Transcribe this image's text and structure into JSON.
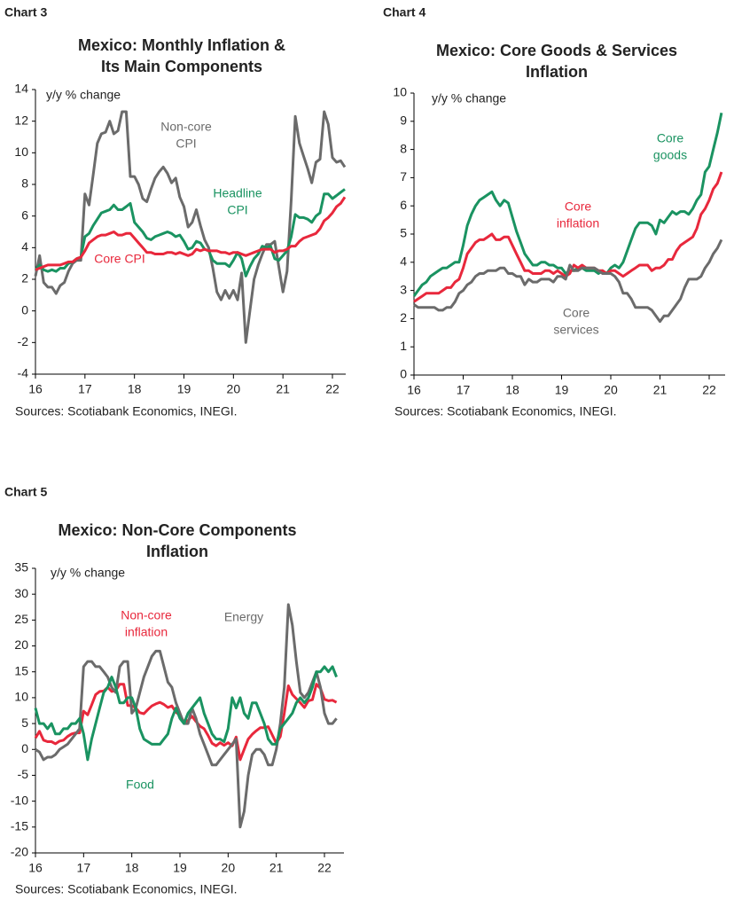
{
  "chart_data": [
    {
      "type": "line",
      "chart_label": "Chart 3",
      "title": "Mexico: Monthly Inflation &\nIts Main Components",
      "y_label": "y/y % change",
      "source": "Sources: Scotiabank Economics, INEGI.",
      "categories": [
        "16",
        null,
        null,
        null,
        null,
        null,
        null,
        null,
        null,
        null,
        null,
        null,
        "17",
        null,
        null,
        null,
        null,
        null,
        null,
        null,
        null,
        null,
        null,
        null,
        "18",
        null,
        null,
        null,
        null,
        null,
        null,
        null,
        null,
        null,
        null,
        null,
        "19",
        null,
        null,
        null,
        null,
        null,
        null,
        null,
        null,
        null,
        null,
        null,
        "20",
        null,
        null,
        null,
        null,
        null,
        null,
        null,
        null,
        null,
        null,
        null,
        "21",
        null,
        null,
        null,
        null,
        null,
        null,
        null,
        null,
        null,
        null,
        null,
        "22",
        null,
        null,
        null
      ],
      "ylim": [
        -4,
        14
      ],
      "yticks": [
        -4,
        -2,
        0,
        2,
        4,
        6,
        8,
        10,
        12,
        14
      ],
      "series": [
        {
          "name": "Non-core\nCPI",
          "color": "#6b6b6b",
          "values": [
            2.2,
            3.5,
            1.8,
            1.5,
            1.5,
            1.1,
            1.6,
            1.8,
            2.5,
            3.0,
            3.2,
            3.2,
            7.4,
            6.7,
            8.6,
            10.6,
            11.2,
            11.3,
            12.0,
            11.2,
            11.4,
            12.6,
            12.6,
            8.5,
            8.5,
            8.0,
            7.1,
            6.9,
            7.7,
            8.4,
            8.8,
            9.1,
            8.7,
            8.1,
            8.4,
            7.2,
            6.6,
            5.3,
            5.6,
            6.4,
            5.4,
            4.5,
            4.0,
            2.7,
            1.2,
            0.7,
            1.3,
            0.8,
            1.3,
            0.7,
            2.4,
            -2.0,
            0.0,
            2.0,
            2.9,
            3.6,
            4.2,
            4.2,
            4.4,
            2.8,
            1.2,
            2.5,
            7.0,
            12.3,
            10.6,
            9.8,
            9.0,
            8.1,
            9.4,
            9.6,
            12.6,
            11.8,
            9.7,
            9.4,
            9.5,
            9.1
          ]
        },
        {
          "name": "Headline\nCPI",
          "color": "#1a9361",
          "values": [
            2.6,
            2.9,
            2.6,
            2.5,
            2.6,
            2.5,
            2.7,
            2.7,
            3.0,
            3.1,
            3.3,
            3.4,
            4.7,
            4.9,
            5.4,
            5.8,
            6.2,
            6.3,
            6.4,
            6.7,
            6.4,
            6.4,
            6.6,
            6.8,
            5.6,
            5.3,
            5.0,
            4.6,
            4.5,
            4.7,
            4.8,
            4.9,
            5.0,
            4.9,
            4.7,
            4.8,
            4.4,
            3.9,
            4.0,
            4.4,
            4.3,
            3.9,
            3.8,
            3.2,
            3.0,
            3.0,
            3.0,
            2.8,
            3.2,
            3.7,
            3.3,
            2.2,
            2.8,
            3.3,
            3.6,
            4.1,
            4.0,
            4.1,
            3.3,
            3.2,
            3.5,
            3.8,
            4.7,
            6.1,
            5.9,
            5.9,
            5.8,
            5.6,
            6.0,
            6.2,
            7.4,
            7.4,
            7.1,
            7.3,
            7.5,
            7.7
          ]
        },
        {
          "name": "Core CPI",
          "color": "#e8283c",
          "values": [
            2.6,
            2.7,
            2.8,
            2.9,
            2.9,
            2.9,
            2.9,
            3.0,
            3.1,
            3.1,
            3.3,
            3.4,
            3.8,
            4.3,
            4.5,
            4.7,
            4.8,
            4.8,
            4.9,
            5.0,
            4.8,
            4.8,
            4.9,
            4.9,
            4.6,
            4.3,
            4.0,
            3.7,
            3.7,
            3.6,
            3.6,
            3.6,
            3.7,
            3.7,
            3.6,
            3.7,
            3.6,
            3.5,
            3.6,
            3.9,
            3.8,
            3.9,
            3.8,
            3.8,
            3.8,
            3.7,
            3.7,
            3.6,
            3.7,
            3.7,
            3.6,
            3.5,
            3.6,
            3.7,
            3.8,
            3.9,
            3.9,
            3.9,
            3.7,
            3.8,
            3.8,
            3.9,
            4.1,
            4.1,
            4.4,
            4.6,
            4.7,
            4.8,
            4.9,
            5.2,
            5.7,
            5.9,
            6.2,
            6.6,
            6.8,
            7.2
          ]
        }
      ]
    },
    {
      "type": "line",
      "chart_label": "Chart 4",
      "title": "Mexico: Core Goods & Services\nInflation",
      "y_label": "y/y % change",
      "source": "Sources: Scotiabank Economics, INEGI.",
      "categories": [
        "16",
        null,
        null,
        null,
        null,
        null,
        null,
        null,
        null,
        null,
        null,
        null,
        "17",
        null,
        null,
        null,
        null,
        null,
        null,
        null,
        null,
        null,
        null,
        null,
        "18",
        null,
        null,
        null,
        null,
        null,
        null,
        null,
        null,
        null,
        null,
        null,
        "19",
        null,
        null,
        null,
        null,
        null,
        null,
        null,
        null,
        null,
        null,
        null,
        "20",
        null,
        null,
        null,
        null,
        null,
        null,
        null,
        null,
        null,
        null,
        null,
        "21",
        null,
        null,
        null,
        null,
        null,
        null,
        null,
        null,
        null,
        null,
        null,
        "22",
        null,
        null,
        null
      ],
      "ylim": [
        0,
        10
      ],
      "yticks": [
        0,
        1,
        2,
        3,
        4,
        5,
        6,
        7,
        8,
        9,
        10
      ],
      "series": [
        {
          "name": "Core\ngoods",
          "color": "#1a9361",
          "values": [
            2.8,
            3.0,
            3.2,
            3.3,
            3.5,
            3.6,
            3.7,
            3.8,
            3.8,
            3.9,
            4.0,
            4.0,
            4.6,
            5.3,
            5.7,
            6.0,
            6.2,
            6.3,
            6.4,
            6.5,
            6.2,
            6.0,
            6.2,
            6.1,
            5.6,
            5.1,
            4.7,
            4.3,
            4.1,
            3.9,
            3.9,
            4.0,
            4.0,
            3.9,
            3.9,
            3.8,
            3.8,
            3.6,
            3.7,
            3.7,
            3.8,
            3.8,
            3.7,
            3.7,
            3.7,
            3.6,
            3.7,
            3.6,
            3.8,
            3.9,
            3.8,
            4.0,
            4.4,
            4.8,
            5.2,
            5.4,
            5.4,
            5.4,
            5.3,
            5.0,
            5.5,
            5.4,
            5.6,
            5.8,
            5.7,
            5.8,
            5.8,
            5.7,
            5.9,
            6.2,
            6.4,
            7.2,
            7.4,
            8.0,
            8.6,
            9.3
          ]
        },
        {
          "name": "Core\ninflation",
          "color": "#e8283c",
          "values": [
            2.6,
            2.7,
            2.8,
            2.9,
            2.9,
            2.9,
            2.9,
            3.0,
            3.1,
            3.1,
            3.3,
            3.4,
            3.8,
            4.3,
            4.5,
            4.7,
            4.8,
            4.8,
            4.9,
            5.0,
            4.8,
            4.8,
            4.9,
            4.9,
            4.6,
            4.3,
            4.0,
            3.7,
            3.7,
            3.6,
            3.6,
            3.6,
            3.7,
            3.7,
            3.6,
            3.7,
            3.6,
            3.5,
            3.6,
            3.9,
            3.8,
            3.9,
            3.8,
            3.8,
            3.8,
            3.7,
            3.7,
            3.6,
            3.7,
            3.7,
            3.6,
            3.5,
            3.6,
            3.7,
            3.8,
            3.9,
            3.9,
            3.9,
            3.7,
            3.8,
            3.8,
            3.9,
            4.1,
            4.1,
            4.4,
            4.6,
            4.7,
            4.8,
            4.9,
            5.2,
            5.7,
            5.9,
            6.2,
            6.6,
            6.8,
            7.2
          ]
        },
        {
          "name": "Core\nservices",
          "color": "#6b6b6b",
          "values": [
            2.5,
            2.4,
            2.4,
            2.4,
            2.4,
            2.4,
            2.3,
            2.3,
            2.4,
            2.4,
            2.6,
            2.9,
            3.0,
            3.2,
            3.3,
            3.5,
            3.6,
            3.6,
            3.7,
            3.7,
            3.7,
            3.8,
            3.8,
            3.6,
            3.6,
            3.5,
            3.5,
            3.2,
            3.4,
            3.3,
            3.3,
            3.4,
            3.4,
            3.4,
            3.3,
            3.5,
            3.5,
            3.4,
            3.9,
            3.7,
            3.7,
            3.8,
            3.8,
            3.8,
            3.8,
            3.7,
            3.6,
            3.6,
            3.6,
            3.5,
            3.3,
            2.9,
            2.9,
            2.7,
            2.4,
            2.4,
            2.4,
            2.4,
            2.3,
            2.1,
            1.9,
            2.1,
            2.1,
            2.3,
            2.5,
            2.7,
            3.1,
            3.4,
            3.4,
            3.4,
            3.5,
            3.8,
            4.0,
            4.3,
            4.5,
            4.8
          ]
        }
      ]
    },
    {
      "type": "line",
      "chart_label": "Chart 5",
      "title": "Mexico: Non-Core Components\nInflation",
      "y_label": "y/y % change",
      "source": "Sources: Scotiabank Economics, INEGI.",
      "categories": [
        "16",
        null,
        null,
        null,
        null,
        null,
        null,
        null,
        null,
        null,
        null,
        null,
        "17",
        null,
        null,
        null,
        null,
        null,
        null,
        null,
        null,
        null,
        null,
        null,
        "18",
        null,
        null,
        null,
        null,
        null,
        null,
        null,
        null,
        null,
        null,
        null,
        "19",
        null,
        null,
        null,
        null,
        null,
        null,
        null,
        null,
        null,
        null,
        null,
        "20",
        null,
        null,
        null,
        null,
        null,
        null,
        null,
        null,
        null,
        null,
        null,
        "21",
        null,
        null,
        null,
        null,
        null,
        null,
        null,
        null,
        null,
        null,
        null,
        "22",
        null,
        null,
        null
      ],
      "ylim": [
        -20,
        35
      ],
      "yticks": [
        -20,
        -15,
        -10,
        -5,
        0,
        5,
        10,
        15,
        20,
        25,
        30,
        35
      ],
      "series": [
        {
          "name": "Non-core\ninflation",
          "color": "#e8283c",
          "values": [
            2.2,
            3.5,
            1.8,
            1.5,
            1.5,
            1.1,
            1.6,
            1.8,
            2.5,
            3.0,
            3.2,
            3.2,
            7.4,
            6.7,
            8.6,
            10.6,
            11.2,
            11.3,
            12.0,
            11.2,
            11.4,
            12.6,
            12.6,
            8.5,
            8.5,
            8.0,
            7.1,
            6.9,
            7.7,
            8.4,
            8.8,
            9.1,
            8.7,
            8.1,
            8.4,
            7.2,
            6.6,
            5.3,
            5.6,
            6.4,
            5.4,
            4.5,
            4.0,
            2.7,
            1.2,
            0.7,
            1.3,
            0.8,
            1.3,
            0.7,
            2.4,
            -2.0,
            0.0,
            2.0,
            2.9,
            3.6,
            4.2,
            4.2,
            4.4,
            2.8,
            1.2,
            2.5,
            7.0,
            12.3,
            10.6,
            9.8,
            9.0,
            8.1,
            9.4,
            9.6,
            12.6,
            11.8,
            9.7,
            9.4,
            9.5,
            9.1
          ]
        },
        {
          "name": "Energy",
          "color": "#6b6b6b",
          "values": [
            0,
            -0.5,
            -2,
            -1.5,
            -1.5,
            -1,
            0,
            0.5,
            1,
            2,
            3,
            4,
            16,
            17,
            17,
            16,
            16,
            15,
            14,
            12,
            11,
            16,
            17,
            17,
            7,
            8,
            11,
            14,
            16,
            18,
            19,
            19,
            16,
            13,
            12,
            9,
            7,
            5,
            5,
            8,
            6,
            3,
            1,
            -1,
            -3,
            -3,
            -2,
            -1,
            0,
            1,
            2,
            -15,
            -12,
            -5,
            -1,
            0,
            0,
            -1,
            -3,
            -3,
            0,
            5,
            12,
            28,
            24,
            17,
            11,
            10,
            11,
            13,
            15,
            12,
            7,
            5,
            5,
            6
          ]
        },
        {
          "name": "Food",
          "color": "#1a9361",
          "values": [
            8,
            5,
            5,
            4,
            5,
            3,
            3,
            4,
            4,
            5,
            5,
            6,
            3,
            -2,
            2,
            5,
            8,
            11,
            12,
            14,
            12,
            9,
            9,
            10,
            10,
            8,
            4,
            2,
            1.5,
            1,
            1,
            1,
            2,
            3,
            6,
            8,
            6,
            5,
            7,
            8,
            9,
            10,
            7,
            5,
            3,
            2,
            2,
            1.5,
            4,
            10,
            8,
            10,
            7,
            6,
            9,
            9,
            7,
            5,
            2,
            1,
            1,
            4,
            5,
            6,
            7,
            9,
            10,
            9,
            10,
            12,
            15,
            15,
            16,
            15,
            16,
            14
          ]
        }
      ]
    }
  ]
}
